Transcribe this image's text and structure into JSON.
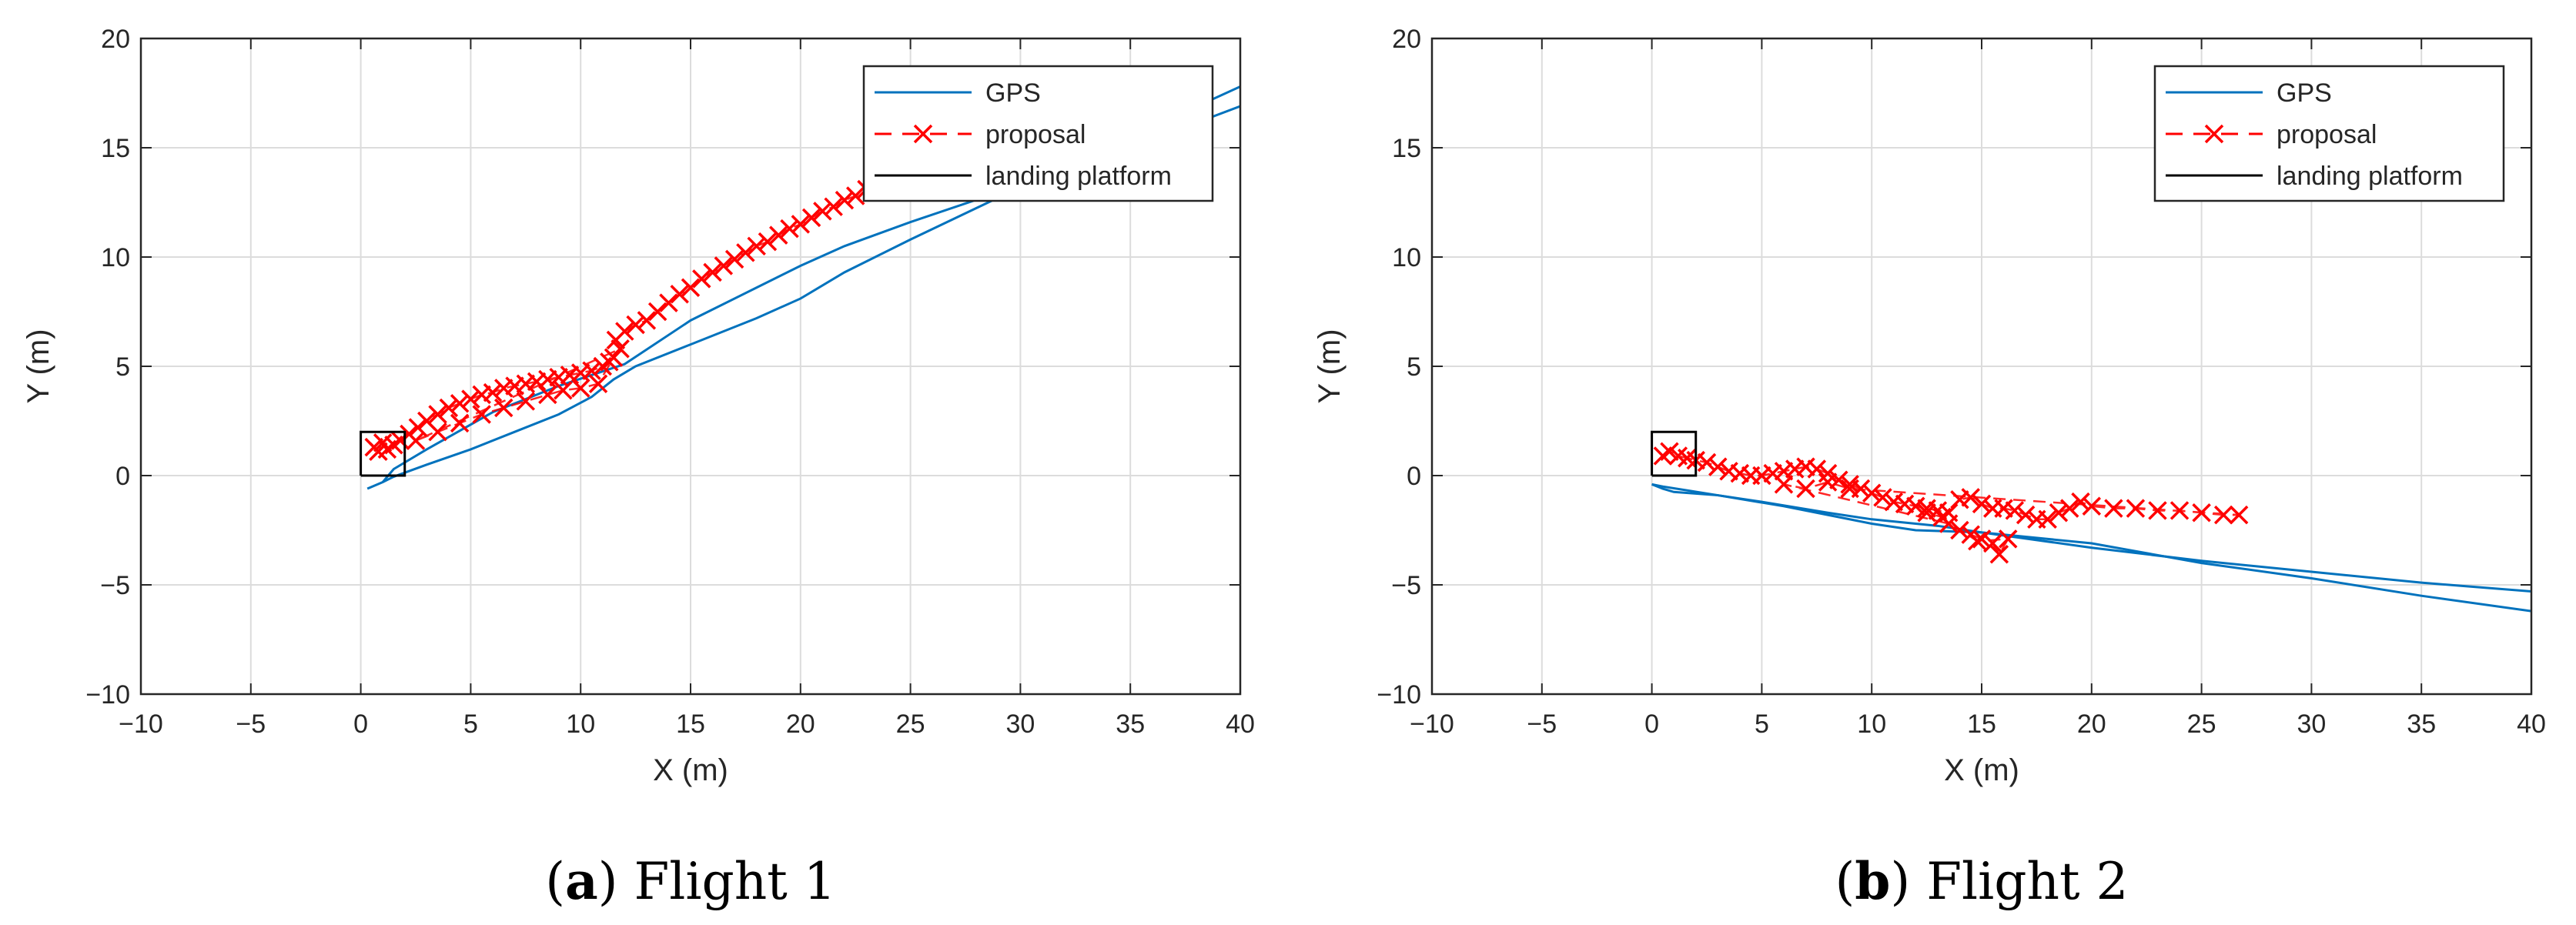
{
  "colors": {
    "gps": "#0072BD",
    "proposal": "#FF0000",
    "platform": "#000000",
    "grid": "#dcdcdc",
    "axis": "#262626"
  },
  "chart_data": [
    {
      "type": "line",
      "caption_letter": "(a)",
      "caption_text": "Flight 1",
      "xlabel": "X (m)",
      "ylabel": "Y (m)",
      "xlim": [
        -10,
        40
      ],
      "ylim": [
        -10,
        20
      ],
      "xticks": [
        -10,
        -5,
        0,
        5,
        10,
        15,
        20,
        25,
        30,
        35,
        40
      ],
      "yticks": [
        -10,
        -5,
        0,
        5,
        10,
        15,
        20
      ],
      "grid": true,
      "legend": {
        "position": "top-right",
        "entries": [
          "GPS",
          "proposal",
          "landing platform"
        ]
      },
      "series": [
        {
          "name": "GPS",
          "style": "line",
          "segments": [
            [
              [
                0.3,
                -0.6
              ],
              [
                1.0,
                -0.3
              ],
              [
                1.5,
                -0.05
              ],
              [
                3,
                0.5
              ],
              [
                5,
                1.2
              ],
              [
                7,
                2.0
              ],
              [
                9,
                2.8
              ],
              [
                10.5,
                3.6
              ],
              [
                11.5,
                4.4
              ],
              [
                12.5,
                5.0
              ],
              [
                15,
                6.0
              ],
              [
                18,
                7.2
              ],
              [
                20,
                8.1
              ],
              [
                22,
                9.3
              ],
              [
                25,
                10.8
              ],
              [
                30,
                13.2
              ],
              [
                35,
                15.0
              ],
              [
                40,
                16.9
              ]
            ],
            [
              [
                1.0,
                -0.3
              ],
              [
                1.5,
                0.3
              ],
              [
                3,
                1.2
              ],
              [
                6,
                2.9
              ],
              [
                9,
                4.1
              ],
              [
                12,
                5.1
              ],
              [
                15,
                7.1
              ],
              [
                18,
                8.6
              ],
              [
                20,
                9.6
              ],
              [
                22,
                10.5
              ],
              [
                25,
                11.6
              ],
              [
                30,
                13.3
              ],
              [
                35,
                15.5
              ],
              [
                40,
                17.8
              ]
            ]
          ]
        },
        {
          "name": "proposal",
          "style": "dashed-x",
          "points": [
            [
              0.6,
              1.3
            ],
            [
              0.8,
              1.1
            ],
            [
              1.0,
              1.5
            ],
            [
              1.2,
              1.2
            ],
            [
              1.5,
              1.4
            ],
            [
              1.8,
              1.6
            ],
            [
              2.2,
              1.9
            ],
            [
              2.6,
              2.2
            ],
            [
              3,
              2.5
            ],
            [
              3.5,
              2.8
            ],
            [
              4,
              3.1
            ],
            [
              4.5,
              3.3
            ],
            [
              5,
              3.5
            ],
            [
              5.5,
              3.7
            ],
            [
              6,
              3.8
            ],
            [
              6.5,
              4.0
            ],
            [
              7,
              4.1
            ],
            [
              7.5,
              4.2
            ],
            [
              8,
              4.3
            ],
            [
              8.5,
              4.4
            ],
            [
              9,
              4.5
            ],
            [
              9.5,
              4.6
            ],
            [
              10,
              4.7
            ],
            [
              10.5,
              4.8
            ],
            [
              11,
              5.0
            ],
            [
              11.3,
              5.2
            ],
            [
              11.5,
              5.4
            ],
            [
              10.8,
              4.2
            ],
            [
              10,
              4.0
            ],
            [
              9.2,
              3.9
            ],
            [
              8.5,
              3.7
            ],
            [
              7.5,
              3.4
            ],
            [
              6.5,
              3.1
            ],
            [
              5.5,
              2.8
            ],
            [
              4.5,
              2.4
            ],
            [
              3.5,
              2.0
            ],
            [
              2.5,
              1.6
            ],
            [
              11.8,
              5.8
            ],
            [
              11.6,
              6.2
            ],
            [
              12,
              6.6
            ],
            [
              12.5,
              6.9
            ],
            [
              13,
              7.1
            ],
            [
              13.5,
              7.5
            ],
            [
              14,
              7.9
            ],
            [
              14.5,
              8.3
            ],
            [
              15,
              8.6
            ],
            [
              15.5,
              9.0
            ],
            [
              16,
              9.3
            ],
            [
              16.5,
              9.6
            ],
            [
              17,
              9.9
            ],
            [
              17.5,
              10.2
            ],
            [
              18,
              10.5
            ],
            [
              18.5,
              10.7
            ],
            [
              19,
              11.0
            ],
            [
              19.5,
              11.3
            ],
            [
              20,
              11.5
            ],
            [
              20.5,
              11.8
            ],
            [
              21,
              12.1
            ],
            [
              21.5,
              12.3
            ],
            [
              22,
              12.6
            ],
            [
              22.5,
              12.8
            ],
            [
              23,
              13.1
            ],
            [
              23.5,
              13.3
            ],
            [
              24,
              13.5
            ],
            [
              24.5,
              13.8
            ],
            [
              25,
              14.0
            ],
            [
              25.5,
              14.2
            ]
          ]
        },
        {
          "name": "landing platform",
          "style": "box",
          "points": [
            [
              0,
              0
            ],
            [
              2,
              0
            ],
            [
              2,
              2
            ],
            [
              0,
              2
            ],
            [
              0,
              0
            ]
          ]
        }
      ]
    },
    {
      "type": "line",
      "caption_letter": "(b)",
      "caption_text": "Flight 2",
      "xlabel": "X (m)",
      "ylabel": "Y (m)",
      "xlim": [
        -10,
        40
      ],
      "ylim": [
        -10,
        20
      ],
      "xticks": [
        -10,
        -5,
        0,
        5,
        10,
        15,
        20,
        25,
        30,
        35,
        40
      ],
      "yticks": [
        -10,
        -5,
        0,
        5,
        10,
        15,
        20
      ],
      "grid": true,
      "legend": {
        "position": "top-right",
        "entries": [
          "GPS",
          "proposal",
          "landing platform"
        ]
      },
      "series": [
        {
          "name": "GPS",
          "style": "line",
          "segments": [
            [
              [
                0,
                -0.4
              ],
              [
                0.5,
                -0.6
              ],
              [
                1,
                -0.75
              ],
              [
                3,
                -0.9
              ],
              [
                5,
                -1.2
              ],
              [
                8,
                -1.7
              ],
              [
                10,
                -2.0
              ],
              [
                13,
                -2.3
              ],
              [
                15,
                -2.6
              ],
              [
                20,
                -3.3
              ],
              [
                25,
                -3.9
              ],
              [
                30,
                -4.4
              ],
              [
                35,
                -4.9
              ],
              [
                40,
                -5.3
              ]
            ],
            [
              [
                0,
                -0.4
              ],
              [
                0.5,
                -0.5
              ],
              [
                3,
                -0.9
              ],
              [
                6,
                -1.4
              ],
              [
                10,
                -2.2
              ],
              [
                12,
                -2.5
              ],
              [
                15,
                -2.6
              ],
              [
                20,
                -3.1
              ],
              [
                25,
                -4.0
              ],
              [
                30,
                -4.7
              ],
              [
                35,
                -5.5
              ],
              [
                40,
                -6.2
              ]
            ]
          ]
        },
        {
          "name": "proposal",
          "style": "dashed-x",
          "points": [
            [
              0.5,
              0.9
            ],
            [
              0.8,
              1.1
            ],
            [
              1.2,
              0.9
            ],
            [
              1.6,
              0.8
            ],
            [
              2.0,
              0.7
            ],
            [
              2.5,
              0.6
            ],
            [
              3,
              0.4
            ],
            [
              3.5,
              0.2
            ],
            [
              4,
              0.1
            ],
            [
              4.5,
              0.0
            ],
            [
              5,
              0.0
            ],
            [
              5.5,
              0.1
            ],
            [
              6,
              0.2
            ],
            [
              6.5,
              0.3
            ],
            [
              7,
              0.4
            ],
            [
              7.5,
              0.3
            ],
            [
              8,
              0.1
            ],
            [
              8.5,
              -0.2
            ],
            [
              9,
              -0.4
            ],
            [
              9.5,
              -0.6
            ],
            [
              10,
              -0.8
            ],
            [
              10.5,
              -1.0
            ],
            [
              11,
              -1.2
            ],
            [
              11.5,
              -1.3
            ],
            [
              12,
              -1.4
            ],
            [
              12.5,
              -1.5
            ],
            [
              13,
              -1.6
            ],
            [
              13.5,
              -1.7
            ],
            [
              14,
              -1.1
            ],
            [
              14.5,
              -1.0
            ],
            [
              15,
              -1.3
            ],
            [
              15.5,
              -1.5
            ],
            [
              16,
              -1.5
            ],
            [
              16.5,
              -1.6
            ],
            [
              17,
              -1.8
            ],
            [
              17.5,
              -2.0
            ],
            [
              18,
              -2.0
            ],
            [
              18.5,
              -1.7
            ],
            [
              19,
              -1.5
            ],
            [
              19.5,
              -1.2
            ],
            [
              20,
              -1.4
            ],
            [
              21,
              -1.5
            ],
            [
              22,
              -1.5
            ],
            [
              23,
              -1.6
            ],
            [
              24,
              -1.6
            ],
            [
              25,
              -1.7
            ],
            [
              26,
              -1.8
            ],
            [
              26.7,
              -1.8
            ],
            [
              9,
              -0.6
            ],
            [
              8,
              -0.3
            ],
            [
              7,
              -0.6
            ],
            [
              6,
              -0.4
            ],
            [
              13.5,
              -2.2
            ],
            [
              14,
              -2.5
            ],
            [
              14.5,
              -2.7
            ],
            [
              15,
              -2.9
            ],
            [
              15.5,
              -3.1
            ],
            [
              15.8,
              -3.6
            ],
            [
              16.2,
              -2.9
            ],
            [
              14.8,
              -3.0
            ],
            [
              13.2,
              -1.9
            ],
            [
              12.5,
              -1.7
            ]
          ]
        },
        {
          "name": "landing platform",
          "style": "box",
          "points": [
            [
              0,
              0
            ],
            [
              2,
              0
            ],
            [
              2,
              2
            ],
            [
              0,
              2
            ],
            [
              0,
              0
            ]
          ]
        }
      ]
    }
  ]
}
